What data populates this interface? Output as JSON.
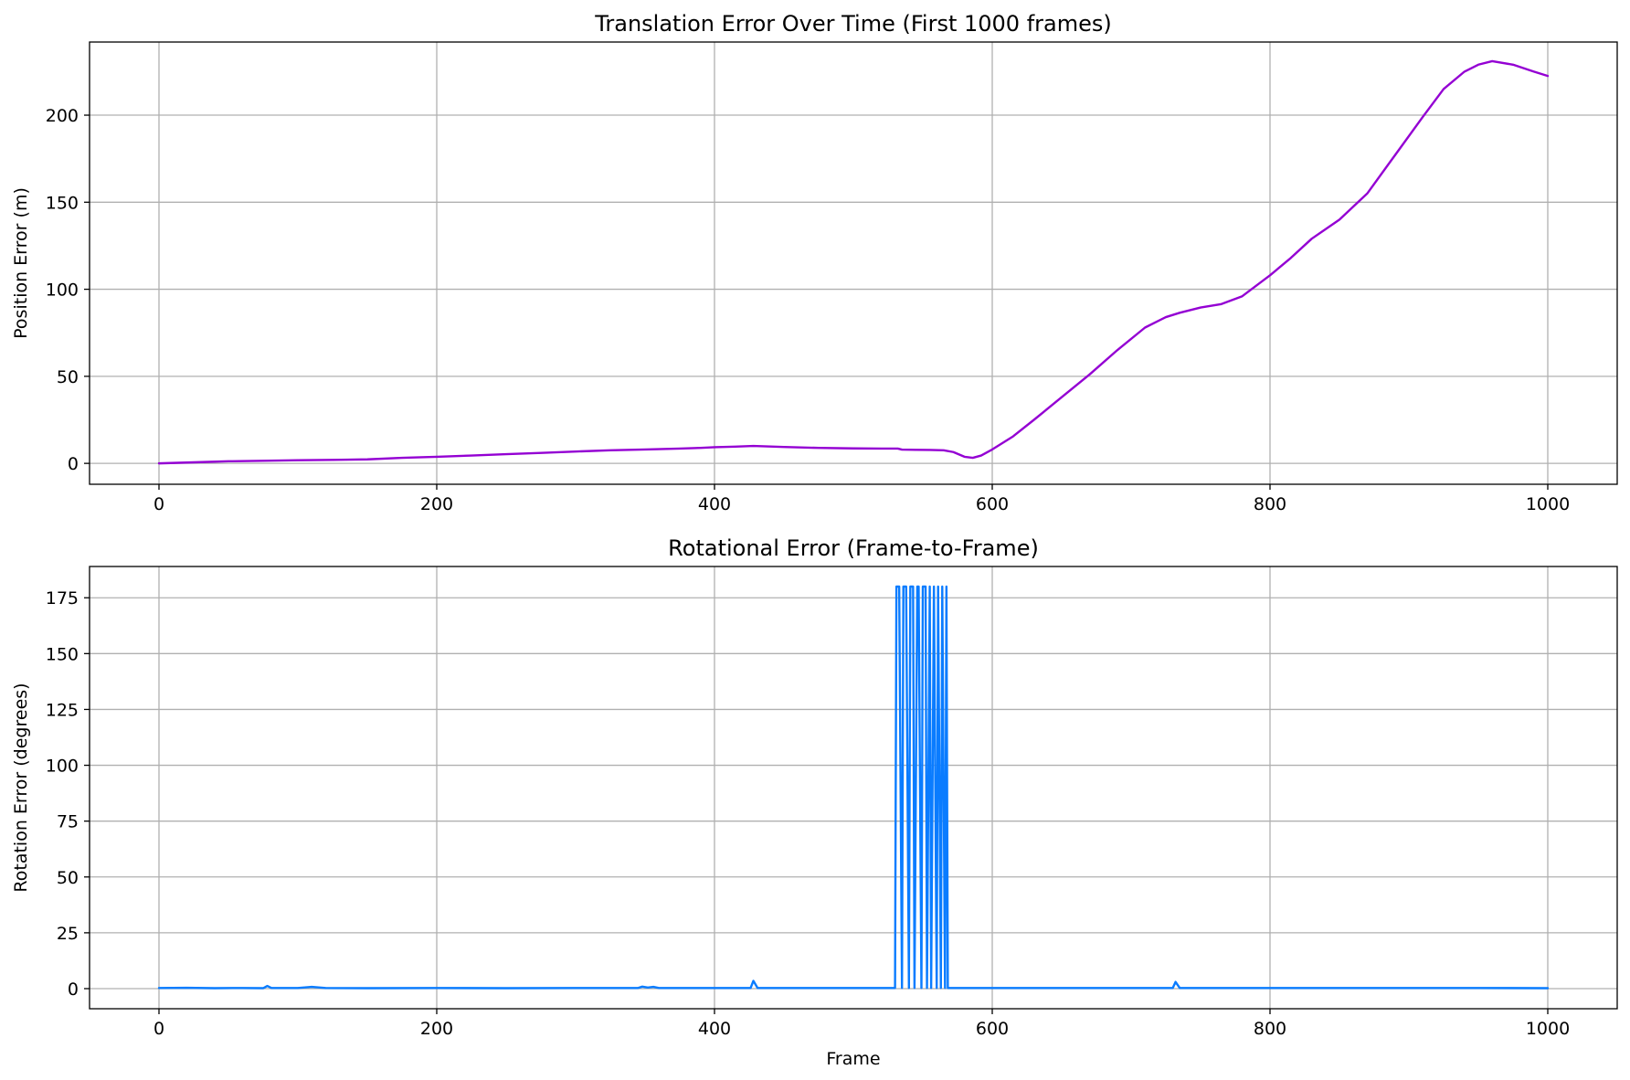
{
  "chart_data": [
    {
      "type": "line",
      "title": "Translation Error Over Time (First 1000 frames)",
      "xlabel": "",
      "ylabel": "Position Error (m)",
      "xlim": [
        -50,
        1050
      ],
      "ylim": [
        -12,
        242
      ],
      "xticks": [
        0,
        200,
        400,
        600,
        800,
        1000
      ],
      "yticks": [
        0,
        50,
        100,
        150,
        200
      ],
      "grid": true,
      "series": [
        {
          "color": "#9400d3",
          "x": [
            0,
            25,
            50,
            75,
            100,
            125,
            150,
            175,
            200,
            225,
            250,
            275,
            300,
            325,
            350,
            375,
            390,
            400,
            415,
            428,
            450,
            475,
            500,
            520,
            532,
            535,
            545,
            555,
            565,
            572,
            580,
            586,
            592,
            600,
            615,
            630,
            650,
            670,
            690,
            710,
            725,
            735,
            750,
            765,
            780,
            800,
            815,
            830,
            850,
            870,
            890,
            910,
            925,
            940,
            950,
            960,
            975,
            990,
            1000
          ],
          "y": [
            0,
            0.6,
            1.2,
            1.5,
            1.8,
            2.0,
            2.3,
            3.2,
            3.8,
            4.5,
            5.3,
            6.0,
            6.8,
            7.5,
            8.0,
            8.5,
            8.9,
            9.3,
            9.6,
            10.0,
            9.4,
            8.9,
            8.6,
            8.5,
            8.5,
            7.9,
            7.8,
            7.7,
            7.5,
            6.5,
            3.8,
            3.2,
            4.5,
            8.0,
            15.5,
            25.0,
            38.0,
            51.0,
            65.0,
            78.0,
            84.0,
            86.5,
            89.5,
            91.5,
            96.0,
            108.0,
            118.0,
            129.0,
            140.0,
            155.0,
            177.0,
            199.0,
            215.0,
            225.0,
            229.0,
            231.0,
            229.0,
            225.0,
            222.5
          ]
        }
      ]
    },
    {
      "type": "line",
      "title": "Rotational Error (Frame-to-Frame)",
      "xlabel": "Frame",
      "ylabel": "Rotation Error (degrees)",
      "xlim": [
        -50,
        1050
      ],
      "ylim": [
        -9,
        189
      ],
      "xticks": [
        0,
        200,
        400,
        600,
        800,
        1000
      ],
      "yticks": [
        0,
        25,
        50,
        75,
        100,
        125,
        150,
        175
      ],
      "grid": true,
      "series": [
        {
          "color": "#0a7cff",
          "x": [
            0,
            20,
            40,
            60,
            75,
            78,
            81,
            100,
            110,
            120,
            150,
            200,
            250,
            300,
            345,
            348,
            352,
            356,
            360,
            365,
            400,
            426,
            428,
            431,
            450,
            500,
            530,
            531,
            533,
            535,
            536,
            538,
            540,
            541,
            543,
            544,
            546,
            547,
            549,
            550,
            552,
            553,
            555,
            556,
            558,
            560,
            561,
            563,
            564,
            566,
            567,
            568,
            570,
            600,
            650,
            700,
            730,
            732,
            735,
            800,
            850,
            900,
            950,
            1000
          ],
          "y": [
            0.3,
            0.4,
            0.2,
            0.3,
            0.2,
            1.2,
            0.3,
            0.3,
            0.8,
            0.3,
            0.2,
            0.3,
            0.2,
            0.3,
            0.3,
            0.9,
            0.5,
            0.8,
            0.3,
            0.3,
            0.3,
            0.3,
            3.5,
            0.3,
            0.3,
            0.3,
            0.3,
            180,
            180,
            0.3,
            180,
            180,
            0.3,
            180,
            180,
            0.3,
            180,
            180,
            0.3,
            180,
            180,
            0.3,
            180,
            0.3,
            180,
            0.3,
            180,
            0.3,
            180,
            0.3,
            180,
            0.3,
            0.3,
            0.3,
            0.3,
            0.3,
            0.3,
            3.0,
            0.3,
            0.3,
            0.3,
            0.3,
            0.3,
            0.2
          ]
        }
      ]
    }
  ]
}
